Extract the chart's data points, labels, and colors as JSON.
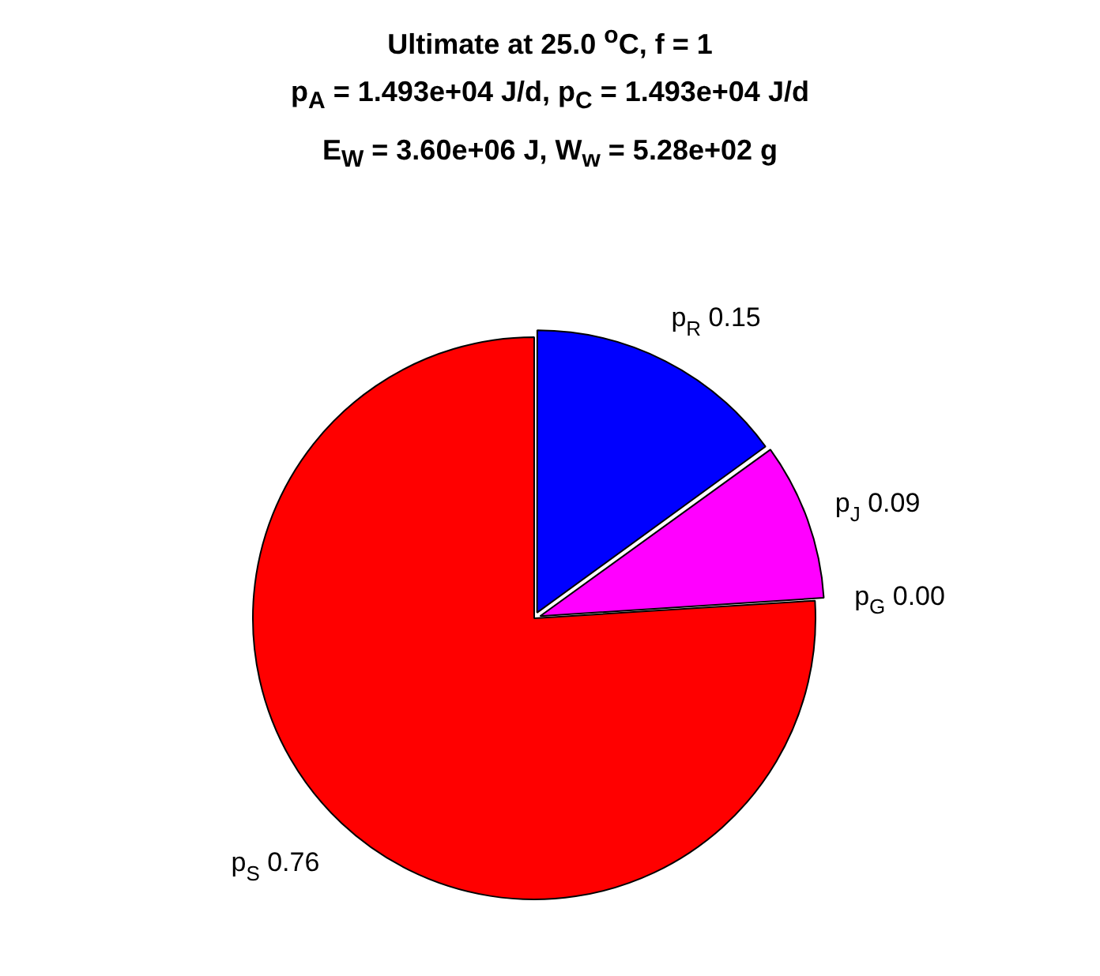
{
  "chart_data": {
    "type": "pie",
    "title": "Ultimate at 25.0 $^{o}$C, f = 1",
    "subtitle": "p$_{A}$ = 1.493e+04 J/d, p$_{C}$ = 1.493e+04 J/d\nE$_{W}$ = 3.60e+06 J, W$_{w}$ = 5.28e+02 g",
    "categories": [
      "p$_{R}$",
      "p$_{J}$",
      "p$_{G}$",
      "p$_{S}$"
    ],
    "values": [
      0.15,
      0.09,
      0.0,
      0.76
    ],
    "colors": [
      "#0000ff",
      "#ff00ff",
      "#00ff00",
      "#ff0000"
    ],
    "value_labels": [
      "0.15",
      "0.09",
      "0.00",
      "0.76"
    ],
    "legend": false
  }
}
